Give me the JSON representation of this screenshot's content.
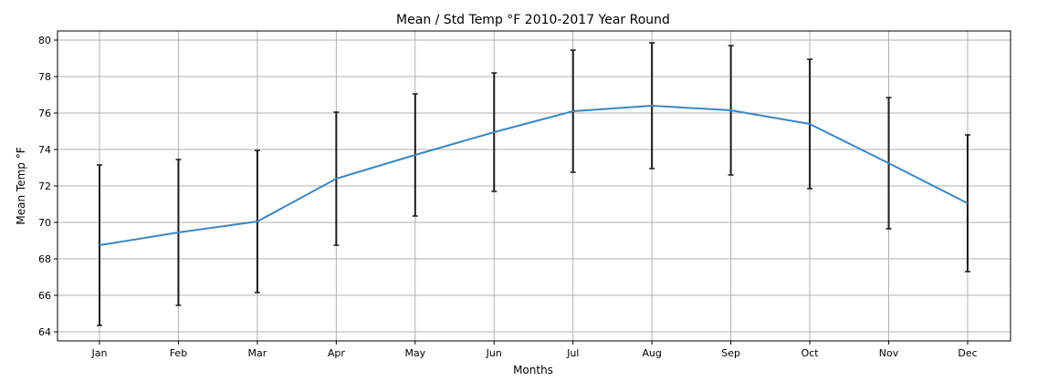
{
  "chart_data": {
    "type": "line",
    "title": "Mean / Std Temp °F 2010-2017 Year Round",
    "xlabel": "Months",
    "ylabel": "Mean Temp °F",
    "categories": [
      "Jan",
      "Feb",
      "Mar",
      "Apr",
      "May",
      "Jun",
      "Jul",
      "Aug",
      "Sep",
      "Oct",
      "Nov",
      "Dec"
    ],
    "series": [
      {
        "values": [
          68.75,
          69.45,
          70.05,
          72.4,
          73.7,
          74.95,
          76.1,
          76.4,
          76.15,
          75.4,
          73.25,
          71.05
        ],
        "error": [
          4.4,
          4.0,
          3.9,
          3.65,
          3.35,
          3.25,
          3.35,
          3.45,
          3.55,
          3.55,
          3.6,
          3.75
        ]
      }
    ],
    "ylim": [
      63.5,
      80.5
    ],
    "yticks": [
      64,
      66,
      68,
      70,
      72,
      74,
      76,
      78,
      80
    ],
    "grid": true,
    "colors": {
      "line": "#3a87c1",
      "errorbar": "#1a1a1a",
      "grid": "#b0b0b0"
    }
  }
}
